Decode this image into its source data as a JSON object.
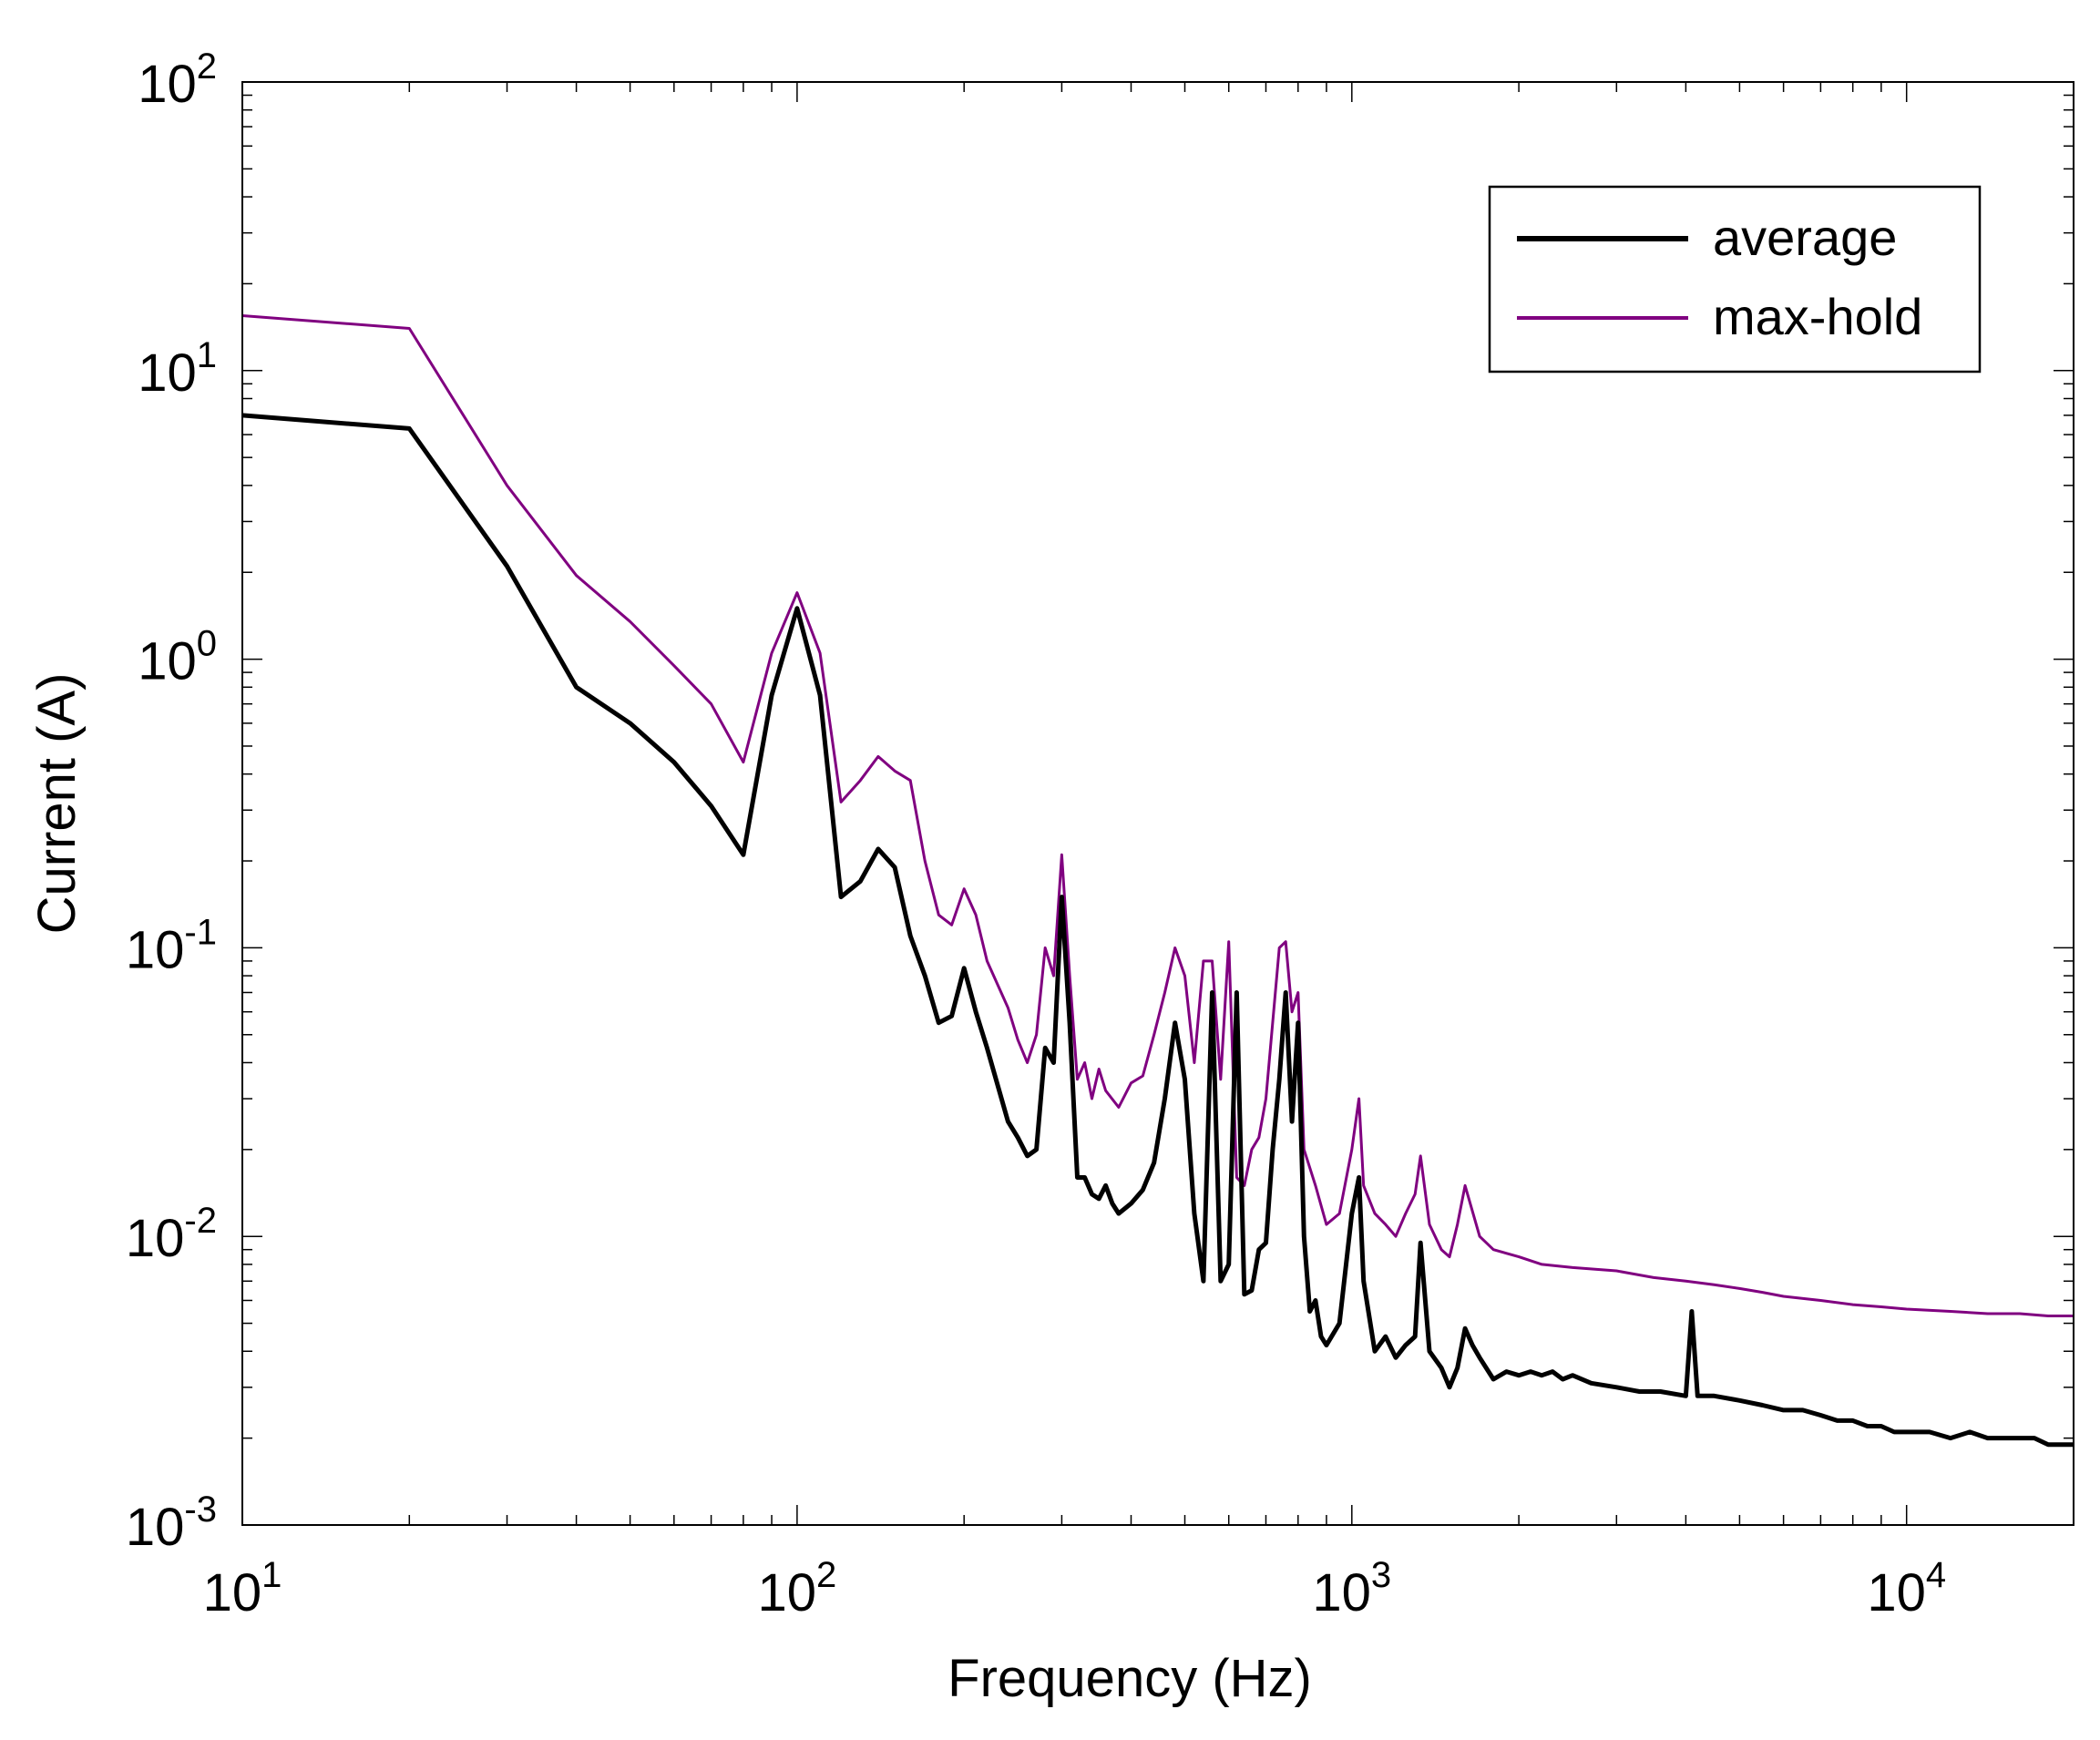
{
  "chart_data": {
    "type": "line",
    "title": "",
    "xlabel": "Frequency (Hz)",
    "ylabel": "Current (A)",
    "xscale": "log",
    "yscale": "log",
    "xlim": [
      10,
      20000
    ],
    "ylim": [
      0.001,
      100
    ],
    "grid": false,
    "legend_position": "top-right",
    "xticks": [
      {
        "value": 10,
        "base": "10",
        "exp": "1"
      },
      {
        "value": 100,
        "base": "10",
        "exp": "2"
      },
      {
        "value": 1000,
        "base": "10",
        "exp": "3"
      },
      {
        "value": 10000,
        "base": "10",
        "exp": "4"
      }
    ],
    "yticks": [
      {
        "value": 0.001,
        "base": "10",
        "exp": "-3"
      },
      {
        "value": 0.01,
        "base": "10",
        "exp": "-2"
      },
      {
        "value": 0.1,
        "base": "10",
        "exp": "-1"
      },
      {
        "value": 1,
        "base": "10",
        "exp": "0"
      },
      {
        "value": 10,
        "base": "10",
        "exp": "1"
      },
      {
        "value": 100,
        "base": "10",
        "exp": "2"
      }
    ],
    "series": [
      {
        "name": "average",
        "color": "#000000",
        "points": [
          [
            10,
            7.0
          ],
          [
            20,
            6.3
          ],
          [
            30,
            2.1
          ],
          [
            40,
            0.8
          ],
          [
            50,
            0.6
          ],
          [
            60,
            0.44
          ],
          [
            70,
            0.31
          ],
          [
            80,
            0.21
          ],
          [
            90,
            0.75
          ],
          [
            100,
            1.5
          ],
          [
            110,
            0.75
          ],
          [
            120,
            0.15
          ],
          [
            130,
            0.17
          ],
          [
            140,
            0.22
          ],
          [
            150,
            0.19
          ],
          [
            160,
            0.11
          ],
          [
            170,
            0.08
          ],
          [
            180,
            0.055
          ],
          [
            190,
            0.058
          ],
          [
            200,
            0.085
          ],
          [
            210,
            0.06
          ],
          [
            220,
            0.045
          ],
          [
            240,
            0.025
          ],
          [
            250,
            0.022
          ],
          [
            260,
            0.019
          ],
          [
            270,
            0.02
          ],
          [
            280,
            0.045
          ],
          [
            290,
            0.04
          ],
          [
            300,
            0.15
          ],
          [
            310,
            0.055
          ],
          [
            320,
            0.016
          ],
          [
            330,
            0.016
          ],
          [
            340,
            0.014
          ],
          [
            350,
            0.0135
          ],
          [
            360,
            0.015
          ],
          [
            370,
            0.013
          ],
          [
            380,
            0.012
          ],
          [
            400,
            0.013
          ],
          [
            420,
            0.0145
          ],
          [
            440,
            0.018
          ],
          [
            460,
            0.03
          ],
          [
            480,
            0.055
          ],
          [
            500,
            0.035
          ],
          [
            520,
            0.012
          ],
          [
            540,
            0.007
          ],
          [
            560,
            0.07
          ],
          [
            580,
            0.007
          ],
          [
            600,
            0.008
          ],
          [
            620,
            0.07
          ],
          [
            640,
            0.0063
          ],
          [
            660,
            0.0065
          ],
          [
            680,
            0.009
          ],
          [
            700,
            0.0095
          ],
          [
            720,
            0.02
          ],
          [
            740,
            0.035
          ],
          [
            760,
            0.07
          ],
          [
            780,
            0.025
          ],
          [
            800,
            0.055
          ],
          [
            820,
            0.01
          ],
          [
            840,
            0.0055
          ],
          [
            860,
            0.006
          ],
          [
            880,
            0.0045
          ],
          [
            900,
            0.0042
          ],
          [
            950,
            0.005
          ],
          [
            1000,
            0.012
          ],
          [
            1030,
            0.016
          ],
          [
            1050,
            0.007
          ],
          [
            1100,
            0.004
          ],
          [
            1150,
            0.0045
          ],
          [
            1200,
            0.0038
          ],
          [
            1250,
            0.0042
          ],
          [
            1300,
            0.0045
          ],
          [
            1330,
            0.0095
          ],
          [
            1380,
            0.004
          ],
          [
            1450,
            0.0035
          ],
          [
            1500,
            0.003
          ],
          [
            1550,
            0.0035
          ],
          [
            1600,
            0.0048
          ],
          [
            1650,
            0.0042
          ],
          [
            1700,
            0.0038
          ],
          [
            1800,
            0.0032
          ],
          [
            1900,
            0.0034
          ],
          [
            2000,
            0.0033
          ],
          [
            2100,
            0.0034
          ],
          [
            2200,
            0.0033
          ],
          [
            2300,
            0.0034
          ],
          [
            2400,
            0.0032
          ],
          [
            2500,
            0.0033
          ],
          [
            2700,
            0.0031
          ],
          [
            3000,
            0.003
          ],
          [
            3300,
            0.0029
          ],
          [
            3600,
            0.0029
          ],
          [
            4000,
            0.0028
          ],
          [
            4100,
            0.0055
          ],
          [
            4200,
            0.0028
          ],
          [
            4500,
            0.0028
          ],
          [
            5000,
            0.0027
          ],
          [
            5500,
            0.0026
          ],
          [
            6000,
            0.0025
          ],
          [
            6500,
            0.0025
          ],
          [
            7000,
            0.0024
          ],
          [
            7500,
            0.0023
          ],
          [
            8000,
            0.0023
          ],
          [
            8500,
            0.0022
          ],
          [
            9000,
            0.0022
          ],
          [
            9500,
            0.0021
          ],
          [
            10000,
            0.0021
          ],
          [
            11000,
            0.0021
          ],
          [
            12000,
            0.002
          ],
          [
            13000,
            0.0021
          ],
          [
            14000,
            0.002
          ],
          [
            15000,
            0.002
          ],
          [
            16000,
            0.002
          ],
          [
            17000,
            0.002
          ],
          [
            18000,
            0.0019
          ],
          [
            19000,
            0.0019
          ],
          [
            20000,
            0.0019
          ]
        ]
      },
      {
        "name": "max-hold",
        "color": "#800080",
        "points": [
          [
            10,
            15.5
          ],
          [
            20,
            14.0
          ],
          [
            30,
            4.0
          ],
          [
            40,
            1.95
          ],
          [
            50,
            1.35
          ],
          [
            60,
            0.95
          ],
          [
            70,
            0.7
          ],
          [
            80,
            0.44
          ],
          [
            90,
            1.05
          ],
          [
            100,
            1.7
          ],
          [
            110,
            1.05
          ],
          [
            120,
            0.32
          ],
          [
            130,
            0.38
          ],
          [
            140,
            0.46
          ],
          [
            150,
            0.41
          ],
          [
            160,
            0.38
          ],
          [
            170,
            0.2
          ],
          [
            180,
            0.13
          ],
          [
            190,
            0.12
          ],
          [
            200,
            0.16
          ],
          [
            210,
            0.13
          ],
          [
            220,
            0.09
          ],
          [
            240,
            0.062
          ],
          [
            250,
            0.048
          ],
          [
            260,
            0.04
          ],
          [
            270,
            0.05
          ],
          [
            280,
            0.1
          ],
          [
            290,
            0.08
          ],
          [
            300,
            0.21
          ],
          [
            310,
            0.08
          ],
          [
            320,
            0.035
          ],
          [
            330,
            0.04
          ],
          [
            340,
            0.03
          ],
          [
            350,
            0.038
          ],
          [
            360,
            0.032
          ],
          [
            380,
            0.028
          ],
          [
            400,
            0.034
          ],
          [
            420,
            0.036
          ],
          [
            440,
            0.05
          ],
          [
            460,
            0.07
          ],
          [
            480,
            0.1
          ],
          [
            500,
            0.08
          ],
          [
            520,
            0.04
          ],
          [
            540,
            0.09
          ],
          [
            560,
            0.09
          ],
          [
            580,
            0.035
          ],
          [
            600,
            0.105
          ],
          [
            620,
            0.016
          ],
          [
            640,
            0.015
          ],
          [
            660,
            0.02
          ],
          [
            680,
            0.022
          ],
          [
            700,
            0.03
          ],
          [
            740,
            0.1
          ],
          [
            760,
            0.105
          ],
          [
            780,
            0.06
          ],
          [
            800,
            0.07
          ],
          [
            820,
            0.02
          ],
          [
            860,
            0.015
          ],
          [
            900,
            0.011
          ],
          [
            950,
            0.012
          ],
          [
            1000,
            0.02
          ],
          [
            1030,
            0.03
          ],
          [
            1050,
            0.015
          ],
          [
            1100,
            0.012
          ],
          [
            1150,
            0.011
          ],
          [
            1200,
            0.01
          ],
          [
            1250,
            0.012
          ],
          [
            1300,
            0.014
          ],
          [
            1330,
            0.019
          ],
          [
            1380,
            0.011
          ],
          [
            1450,
            0.009
          ],
          [
            1500,
            0.0085
          ],
          [
            1550,
            0.011
          ],
          [
            1600,
            0.015
          ],
          [
            1700,
            0.01
          ],
          [
            1800,
            0.009
          ],
          [
            2000,
            0.0085
          ],
          [
            2200,
            0.008
          ],
          [
            2500,
            0.0078
          ],
          [
            3000,
            0.0076
          ],
          [
            3500,
            0.0072
          ],
          [
            4000,
            0.007
          ],
          [
            4500,
            0.0068
          ],
          [
            5000,
            0.0066
          ],
          [
            5500,
            0.0064
          ],
          [
            6000,
            0.0062
          ],
          [
            7000,
            0.006
          ],
          [
            8000,
            0.0058
          ],
          [
            9000,
            0.0057
          ],
          [
            10000,
            0.0056
          ],
          [
            12000,
            0.0055
          ],
          [
            14000,
            0.0054
          ],
          [
            16000,
            0.0054
          ],
          [
            18000,
            0.0053
          ],
          [
            20000,
            0.0053
          ]
        ]
      }
    ]
  }
}
